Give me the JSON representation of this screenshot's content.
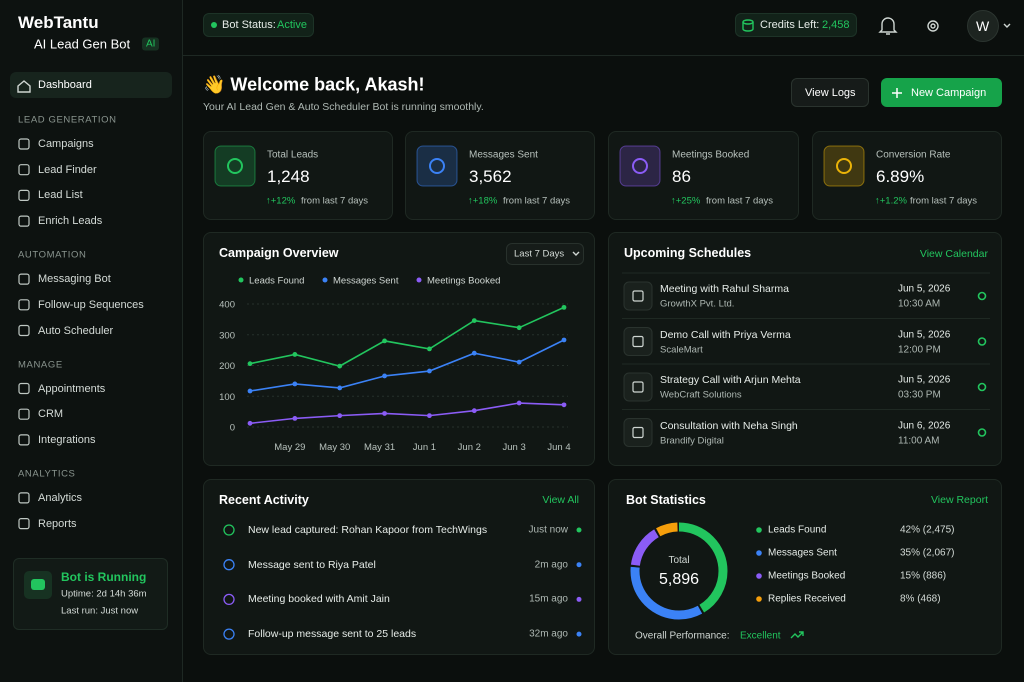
{
  "sidebar": {
    "brand": "WebTantu",
    "subtitle": "AI Lead Gen Bot",
    "badge": "AI",
    "active": "Dashboard",
    "sections": [
      {
        "title": "LEAD GENERATION",
        "items": [
          "Campaigns",
          "Lead Finder",
          "Lead List",
          "Enrich Leads"
        ]
      },
      {
        "title": "AUTOMATION",
        "items": [
          "Messaging Bot",
          "Follow-up Sequences",
          "Auto Scheduler"
        ]
      },
      {
        "title": "MANAGE",
        "items": [
          "Appointments",
          "CRM",
          "Integrations"
        ]
      },
      {
        "title": "ANALYTICS",
        "items": [
          "Analytics",
          "Reports"
        ]
      }
    ],
    "bot_card": {
      "title": "Bot is Running",
      "uptime": "Uptime: 2d 14h 36m",
      "last_run": "Last run: Just now"
    }
  },
  "topbar": {
    "status_label": "Bot Status:",
    "status_value": "Active",
    "credits_label": "Credits Left:",
    "credits_value": "2,458",
    "avatar": "W"
  },
  "header": {
    "title": "👋 Welcome back, Akash!",
    "subtitle": "Your AI Lead Gen & Auto Scheduler Bot is running smoothly.",
    "buttons": [
      "View Logs",
      "New Campaign"
    ]
  },
  "stats": [
    {
      "label": "Total Leads",
      "value": "1,248",
      "change": "↑+12%",
      "note": "from last 7 days",
      "color": "#22c55e"
    },
    {
      "label": "Messages Sent",
      "value": "3,562",
      "change": "↑+18%",
      "note": "from last 7 days",
      "color": "#3b82f6"
    },
    {
      "label": "Meetings Booked",
      "value": "86",
      "change": "↑+25%",
      "note": "from last 7 days",
      "color": "#8b5cf6"
    },
    {
      "label": "Conversion Rate",
      "value": "6.89%",
      "change": "↑+1.2%",
      "note": "from last 7 days",
      "color": "#eab308"
    }
  ],
  "campaign_overview": {
    "type": "line",
    "title": "Campaign Overview",
    "range": "Last 7 Days",
    "categories": [
      null,
      "May 29",
      "May 30",
      "May 31",
      "Jun 1",
      "Jun 2",
      "Jun 3",
      "Jun 4"
    ],
    "series": [
      {
        "name": "Leads Found",
        "color": "#22c55e",
        "values": [
          206,
          236,
          198,
          280,
          254,
          346,
          323,
          389
        ]
      },
      {
        "name": "Messages Sent",
        "color": "#3b82f6",
        "values": [
          117,
          140,
          127,
          166,
          182,
          240,
          211,
          283
        ]
      },
      {
        "name": "Meetings Booked",
        "color": "#8b5cf6",
        "values": [
          12,
          28,
          37,
          44,
          37,
          53,
          78,
          72
        ]
      }
    ],
    "ylim": [
      0,
      400
    ],
    "yticks": [
      0,
      100,
      200,
      300,
      400
    ],
    "grid": true
  },
  "schedules": {
    "title": "Upcoming Schedules",
    "link": "View Calendar",
    "items": [
      {
        "title": "Meeting with Rahul Sharma",
        "company": "GrowthX Pvt. Ltd.",
        "date": "Jun 5, 2026",
        "time": "10:30 AM"
      },
      {
        "title": "Demo Call with Priya Verma",
        "company": "ScaleMart",
        "date": "Jun 5, 2026",
        "time": "12:00 PM"
      },
      {
        "title": "Strategy Call with Arjun Mehta",
        "company": "WebCraft Solutions",
        "date": "Jun 5, 2026",
        "time": "03:30 PM"
      },
      {
        "title": "Consultation with Neha Singh",
        "company": "Brandify Digital",
        "date": "Jun 6, 2026",
        "time": "11:00 AM"
      }
    ]
  },
  "activity": {
    "title": "Recent Activity",
    "link": "View All",
    "items": [
      {
        "text": "New lead captured: Rohan Kapoor from TechWings",
        "time": "Just now",
        "color": "#22c55e"
      },
      {
        "text": "Message sent to Riya Patel",
        "time": "2m ago",
        "color": "#3b82f6"
      },
      {
        "text": "Meeting booked with Amit Jain",
        "time": "15m ago",
        "color": "#8b5cf6"
      },
      {
        "text": "Follow-up message sent to 25 leads",
        "time": "32m ago",
        "color": "#3b82f6"
      }
    ]
  },
  "bot_statistics": {
    "type": "donut",
    "title": "Bot Statistics",
    "link": "View Report",
    "center_label": "Total",
    "center_value": "5,896",
    "items": [
      {
        "name": "Leads Found",
        "color": "#22c55e",
        "value": 42,
        "value_label": "42% (2,475)"
      },
      {
        "name": "Messages Sent",
        "color": "#3b82f6",
        "value": 35,
        "value_label": "35% (2,067)"
      },
      {
        "name": "Meetings Booked",
        "color": "#8b5cf6",
        "value": 15,
        "value_label": "15% (886)"
      },
      {
        "name": "Replies Received",
        "color": "#f59e0b",
        "value": 8,
        "value_label": "8% (468)"
      }
    ],
    "footer_label": "Overall Performance:",
    "footer_value": "Excellent"
  }
}
